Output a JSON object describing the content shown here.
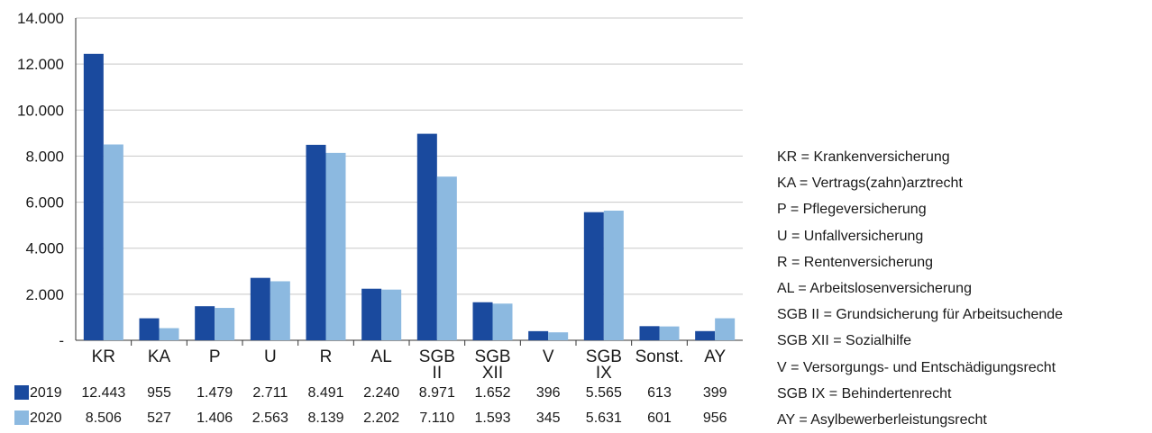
{
  "chart_data": {
    "type": "bar",
    "categories": [
      [
        "KR"
      ],
      [
        "KA"
      ],
      [
        "P"
      ],
      [
        "U"
      ],
      [
        "R"
      ],
      [
        "AL"
      ],
      [
        "SGB",
        "II"
      ],
      [
        "SGB",
        "XII"
      ],
      [
        "V"
      ],
      [
        "SGB",
        "IX"
      ],
      [
        "Sonst."
      ],
      [
        "AY"
      ]
    ],
    "series": [
      {
        "name": "2019",
        "color": "#1a4a9e",
        "values": [
          12443,
          955,
          1479,
          2711,
          8491,
          2240,
          8971,
          1652,
          396,
          5565,
          613,
          399
        ],
        "labels": [
          "12.443",
          "955",
          "1.479",
          "2.711",
          "8.491",
          "2.240",
          "8.971",
          "1.652",
          "396",
          "5.565",
          "613",
          "399"
        ]
      },
      {
        "name": "2020",
        "color": "#8cb9e0",
        "values": [
          8506,
          527,
          1406,
          2563,
          8139,
          2202,
          7110,
          1593,
          345,
          5631,
          601,
          956
        ],
        "labels": [
          "8.506",
          "527",
          "1.406",
          "2.563",
          "8.139",
          "2.202",
          "7.110",
          "1.593",
          "345",
          "5.631",
          "601",
          "956"
        ]
      }
    ],
    "ylim": [
      0,
      14000
    ],
    "yticks": [
      0,
      2000,
      4000,
      6000,
      8000,
      10000,
      12000,
      14000
    ],
    "ytick_labels": [
      "-",
      "2.000",
      "4.000",
      "6.000",
      "8.000",
      "10.000",
      "12.000",
      "14.000"
    ],
    "grid": true,
    "gridline_color": "#c8c8c8",
    "legend": "data table below chart"
  },
  "abbreviations": [
    "KR = Krankenversicherung",
    "KA = Vertrags(zahn)arztrecht",
    "P = Pflegeversicherung",
    "U = Unfallversicherung",
    "R = Rentenversicherung",
    "AL = Arbeitslosenversicherung",
    "SGB II = Grundsicherung für Arbeitsuchende",
    "SGB XII = Sozialhilfe",
    "V = Versorgungs- und Entschädigungsrecht",
    "SGB IX = Behindertenrecht",
    "AY = Asylbewerberleistungsrecht"
  ]
}
